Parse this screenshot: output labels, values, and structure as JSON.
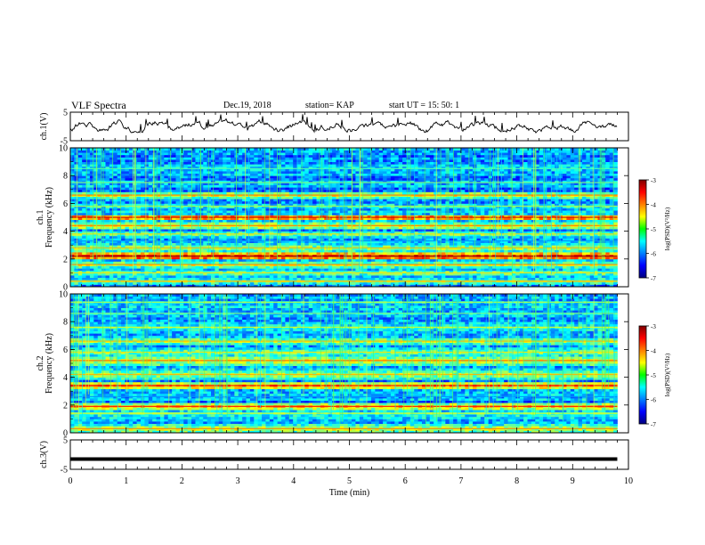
{
  "header": {
    "title": "VLF Spectra",
    "date": "Dec.19, 2018",
    "station": "station= KAP",
    "start": "start  UT  =   15: 50: 1"
  },
  "chart_data": {
    "type": "heatmap",
    "x_axis": {
      "label": "Time  (min)",
      "range": [
        0,
        10
      ],
      "ticks": [
        "0",
        "1",
        "2",
        "3",
        "4",
        "5",
        "6",
        "7",
        "8",
        "9",
        "10"
      ]
    },
    "panels": [
      {
        "id": "ch1-voltage",
        "type": "line",
        "ylabel": "ch.1(V)",
        "ylim": [
          -5,
          5
        ],
        "yticks": [
          "5",
          "-5"
        ],
        "data_end_min": 9.8
      },
      {
        "id": "ch1-spectrogram",
        "type": "heatmap",
        "ylabel_line1": "ch.1",
        "ylabel_line2": "Frequency  (kHz)",
        "ylim": [
          0,
          10
        ],
        "yticks": [
          "0",
          "2",
          "4",
          "6",
          "8",
          "10"
        ],
        "data_end_min": 9.8,
        "colorbar": {
          "label": "log(PSD)(V²/Hz)",
          "range": [
            -7,
            -3
          ],
          "ticks": [
            "-3",
            "-4",
            "-5",
            "-6",
            "-7"
          ]
        }
      },
      {
        "id": "ch2-spectrogram",
        "type": "heatmap",
        "ylabel_line1": "ch.2",
        "ylabel_line2": "Frequency  (kHz)",
        "ylim": [
          0,
          10
        ],
        "yticks": [
          "0",
          "2",
          "4",
          "6",
          "8",
          "10"
        ],
        "data_end_min": 9.8,
        "colorbar": {
          "label": "log(PSD)(V²/Hz)",
          "range": [
            -7,
            -3
          ],
          "ticks": [
            "-3",
            "-4",
            "-5",
            "-6",
            "-7"
          ]
        }
      },
      {
        "id": "ch3-voltage",
        "type": "line",
        "ylabel": "ch.3(V)",
        "ylim": [
          -5,
          5
        ],
        "yticks": [
          "5",
          "-5"
        ],
        "constant_value": -1.5,
        "data_end_min": 9.8
      }
    ]
  }
}
